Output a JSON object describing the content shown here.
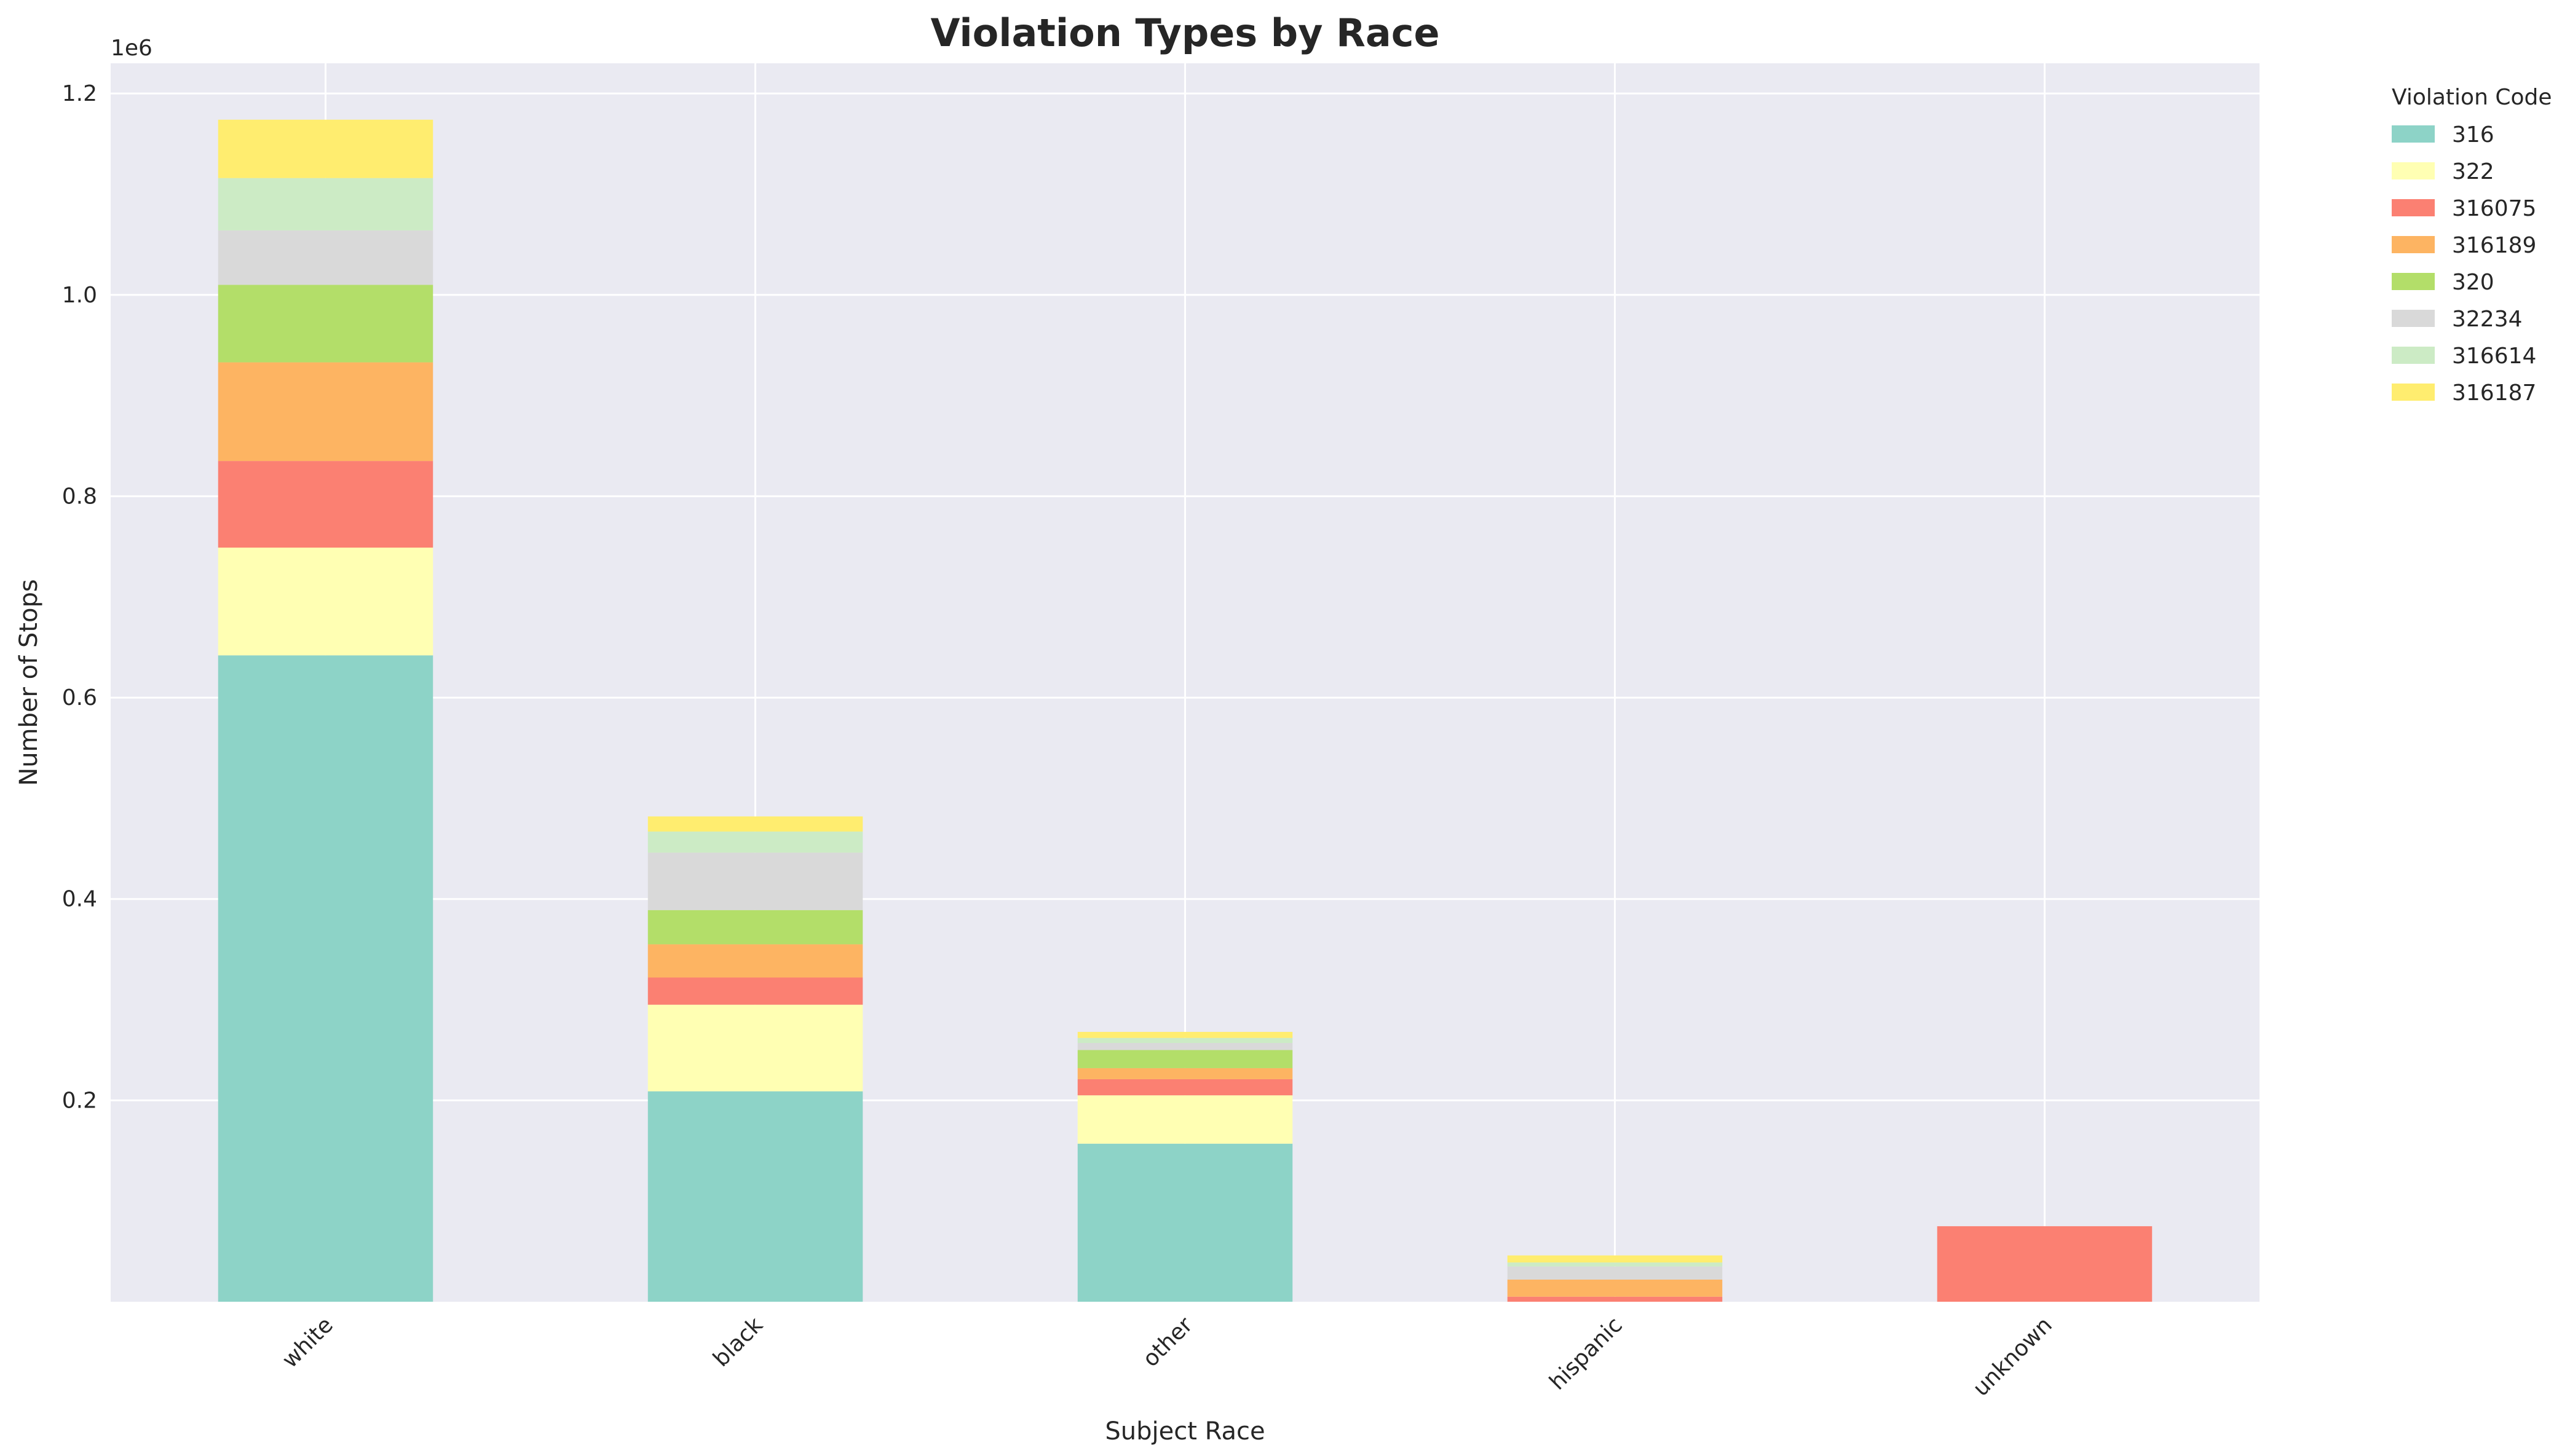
{
  "chart_data": {
    "type": "bar",
    "stacked": true,
    "title": "Violation Types by Race",
    "xlabel": "Subject Race",
    "ylabel": "Number of Stops",
    "y_multiplier_label": "1e6",
    "ylim": [
      0,
      1230000
    ],
    "yticks": [
      200000,
      400000,
      600000,
      800000,
      1000000,
      1200000
    ],
    "ytick_labels": [
      "0.2",
      "0.4",
      "0.6",
      "0.8",
      "1.0",
      "1.2"
    ],
    "categories": [
      "white",
      "black",
      "other",
      "hispanic",
      "unknown"
    ],
    "grid": true,
    "legend": {
      "title": "Violation Code",
      "placement": "outside-top-right"
    },
    "series": [
      {
        "name": "316",
        "color": "#8dd3c7",
        "values": [
          642000,
          209000,
          157000,
          0,
          0
        ]
      },
      {
        "name": "322",
        "color": "#ffffb3",
        "values": [
          107000,
          86000,
          48000,
          0,
          0
        ]
      },
      {
        "name": "316075",
        "color": "#fb8072",
        "values": [
          86000,
          27000,
          16000,
          5000,
          75000
        ]
      },
      {
        "name": "316189",
        "color": "#fdb462",
        "values": [
          98000,
          33000,
          11000,
          17000,
          0
        ]
      },
      {
        "name": "320",
        "color": "#b3de69",
        "values": [
          77000,
          34000,
          18000,
          0,
          0
        ]
      },
      {
        "name": "32234",
        "color": "#d9d9d9",
        "values": [
          54000,
          57000,
          7000,
          13000,
          0
        ]
      },
      {
        "name": "316614",
        "color": "#ccebc5",
        "values": [
          52000,
          21000,
          5000,
          4000,
          0
        ]
      },
      {
        "name": "316187",
        "color": "#ffed6f",
        "values": [
          58000,
          15000,
          6000,
          7000,
          0
        ]
      }
    ]
  }
}
